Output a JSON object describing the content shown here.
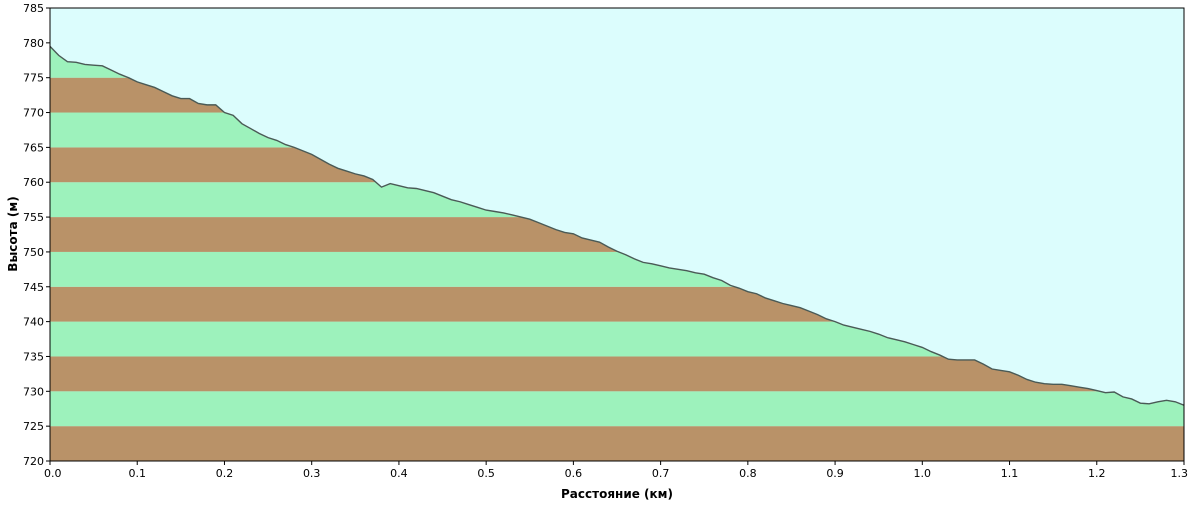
{
  "chart_data": {
    "type": "area",
    "title": "",
    "xlabel": "Расстояние  (км)",
    "ylabel": "Высота (м)",
    "xlim": [
      0,
      1.3
    ],
    "ylim": [
      720,
      785
    ],
    "x_ticks": [
      "0.0",
      "0.1",
      "0.2",
      "0.3",
      "0.4",
      "0.5",
      "0.6",
      "0.7",
      "0.8",
      "0.9",
      "1.0",
      "1.1",
      "1.2",
      "1.3"
    ],
    "y_ticks": [
      "720",
      "725",
      "730",
      "735",
      "740",
      "745",
      "750",
      "755",
      "760",
      "765",
      "770",
      "775",
      "780",
      "785"
    ],
    "band_step": 5,
    "grid": false,
    "legend": "none",
    "colors": {
      "sky": "#dcfdfd",
      "band_light": "#9df2bc",
      "band_dark": "#b99268",
      "profile_line": "#4a5a56",
      "frame": "#000000"
    },
    "series": [
      {
        "x": [
          0.0,
          0.01,
          0.02,
          0.03,
          0.04,
          0.05,
          0.06,
          0.07,
          0.08,
          0.09,
          0.1,
          0.11,
          0.12,
          0.13,
          0.14,
          0.15,
          0.16,
          0.17,
          0.18,
          0.19,
          0.2,
          0.21,
          0.22,
          0.23,
          0.24,
          0.25,
          0.26,
          0.27,
          0.28,
          0.29,
          0.3,
          0.31,
          0.32,
          0.33,
          0.34,
          0.35,
          0.36,
          0.37,
          0.38,
          0.39,
          0.4,
          0.41,
          0.42,
          0.43,
          0.44,
          0.45,
          0.46,
          0.47,
          0.48,
          0.49,
          0.5,
          0.51,
          0.52,
          0.53,
          0.54,
          0.55,
          0.56,
          0.57,
          0.58,
          0.59,
          0.6,
          0.61,
          0.62,
          0.63,
          0.64,
          0.65,
          0.66,
          0.67,
          0.68,
          0.69,
          0.7,
          0.71,
          0.72,
          0.73,
          0.74,
          0.75,
          0.76,
          0.77,
          0.78,
          0.79,
          0.8,
          0.81,
          0.82,
          0.83,
          0.84,
          0.85,
          0.86,
          0.87,
          0.88,
          0.89,
          0.9,
          0.91,
          0.92,
          0.93,
          0.94,
          0.95,
          0.96,
          0.97,
          0.98,
          0.99,
          1.0,
          1.01,
          1.02,
          1.03,
          1.04,
          1.05,
          1.06,
          1.07,
          1.08,
          1.09,
          1.1,
          1.11,
          1.12,
          1.13,
          1.14,
          1.15,
          1.16,
          1.17,
          1.18,
          1.19,
          1.2,
          1.21,
          1.22,
          1.23,
          1.24,
          1.25,
          1.26,
          1.27,
          1.28,
          1.29,
          1.3
        ],
        "y": [
          779.5,
          778.2,
          777.3,
          777.2,
          776.9,
          776.8,
          776.7,
          776.1,
          775.5,
          775.0,
          774.4,
          774.0,
          773.6,
          773.0,
          772.4,
          772.0,
          772.0,
          771.3,
          771.1,
          771.1,
          770.0,
          769.6,
          768.4,
          767.7,
          767.0,
          766.4,
          766.0,
          765.4,
          765.0,
          764.5,
          764.0,
          763.3,
          762.6,
          762.0,
          761.6,
          761.2,
          760.9,
          760.4,
          759.3,
          759.8,
          759.5,
          759.2,
          759.1,
          758.8,
          758.5,
          758.0,
          757.5,
          757.2,
          756.8,
          756.4,
          756.0,
          755.8,
          755.6,
          755.3,
          755.0,
          754.7,
          754.2,
          753.7,
          753.2,
          752.8,
          752.6,
          752.0,
          751.7,
          751.4,
          750.7,
          750.1,
          749.6,
          749.0,
          748.5,
          748.3,
          748.0,
          747.7,
          747.5,
          747.3,
          747.0,
          746.8,
          746.3,
          745.9,
          745.2,
          744.8,
          744.3,
          744.0,
          743.4,
          743.0,
          742.6,
          742.3,
          742.0,
          741.5,
          741.0,
          740.4,
          740.0,
          739.5,
          739.2,
          738.9,
          738.6,
          738.2,
          737.7,
          737.4,
          737.1,
          736.7,
          736.3,
          735.7,
          735.2,
          734.6,
          734.5,
          734.5,
          734.5,
          733.9,
          733.2,
          733.0,
          732.8,
          732.3,
          731.7,
          731.3,
          731.1,
          731.0,
          731.0,
          730.8,
          730.6,
          730.4,
          730.1,
          729.8,
          729.9,
          729.2,
          728.9,
          728.3,
          728.2,
          728.5,
          728.7,
          728.5,
          728.0
        ]
      }
    ]
  }
}
